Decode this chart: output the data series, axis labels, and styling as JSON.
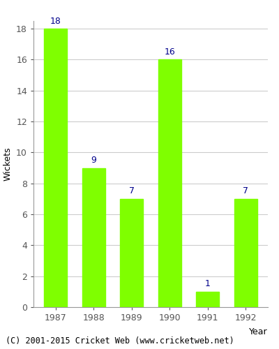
{
  "categories": [
    "1987",
    "1988",
    "1989",
    "1990",
    "1991",
    "1992"
  ],
  "values": [
    18,
    9,
    7,
    16,
    1,
    7
  ],
  "bar_color": "#7FFF00",
  "label_color": "#00008B",
  "ylabel": "Wickets",
  "xlabel": "Year",
  "ylim": [
    0,
    18
  ],
  "yticks": [
    0,
    2,
    4,
    6,
    8,
    10,
    12,
    14,
    16,
    18
  ],
  "footnote": "(C) 2001-2015 Cricket Web (www.cricketweb.net)",
  "bar_edge_color": "#7FFF00",
  "grid_color": "#cccccc",
  "label_fontsize": 9,
  "axis_fontsize": 9,
  "footnote_fontsize": 8.5
}
